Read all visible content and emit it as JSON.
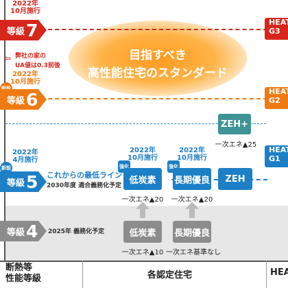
{
  "grades": {
    "g7": {
      "note": "2022年\n10月施行",
      "label": "等級",
      "number": "7"
    },
    "g6": {
      "note": "2022年\n10月施行",
      "label": "等級",
      "number": "6"
    },
    "g5": {
      "note": "2022年\n4月施行",
      "label": "等級",
      "number": "5"
    },
    "g4": {
      "label": "等級",
      "number": "4"
    }
  },
  "badges": {
    "new": "新設",
    "strengthen": "強化"
  },
  "ua_note": {
    "line1": "弊社の家の",
    "line2": "UA値は0.3前後"
  },
  "banner": {
    "line1": "目指すべき",
    "line2": "高性能住宅のスタンダード"
  },
  "row5": {
    "title": "これからの最低ライン",
    "sub": "2030年度 適合義務化予定"
  },
  "row4": {
    "sub": "2025年 義務化予定"
  },
  "certs": {
    "zeh_plus": {
      "label": "ZEH+",
      "caption": "一次エネ▲25"
    },
    "low_carbon": {
      "year": "2022年\n10月施行",
      "label": "低炭素",
      "caption": "一次エネ▲20"
    },
    "long_term": {
      "year": "2022年\n10月施行",
      "label": "長期優良",
      "caption": "一次エネ▲20"
    },
    "zeh": {
      "label": "ZEH"
    },
    "low_carbon_old": {
      "label": "低炭素",
      "caption": "一次エネ▲10"
    },
    "long_term_old": {
      "label": "長期優良",
      "caption": "一次エネ基準なし"
    }
  },
  "heat20": {
    "g3": "HEAT\nG3",
    "g2": "HEAT\nG2",
    "g1": "HEAT\nG1",
    "footer": "HEA"
  },
  "footer": {
    "col1": "断熱等\n性能等級",
    "col2": "各認定住宅"
  },
  "colors": {
    "red": "#d7261c",
    "orange": "#ee7a13",
    "blue": "#1d7fc6",
    "grey": "#8c8c8c",
    "teal": "#3e9396"
  }
}
